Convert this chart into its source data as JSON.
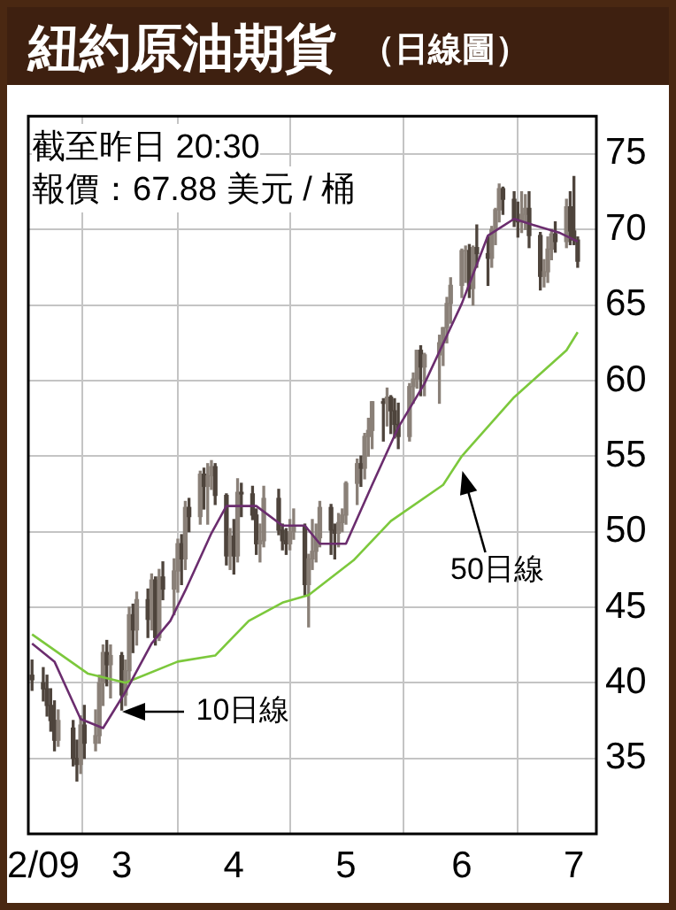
{
  "chart_data": {
    "type": "candlestick",
    "title": "紐約原油期貨",
    "subtitle": "（日線圖）",
    "annotations": [
      "截至昨日 20:30",
      "報價：67.88 美元 / 桶",
      {
        "text": "10日線",
        "x": "--03-02",
        "y": 38.1
      },
      {
        "text": "50日線",
        "x": "--06-01",
        "y": 54
      }
    ],
    "colors": [
      "#4e443c",
      "#4e443c",
      "#4e443c",
      "#4e443c",
      "#4e443c",
      "#8a8078",
      "#4e443c",
      "#4e443c",
      "#8a8078",
      "#4e443c",
      "#8a8078",
      "#8a8078",
      "#8a8078",
      "#4e443c",
      "#8a8078",
      "#4e443c",
      "#8a8078",
      "#8a8078",
      "#4e443c",
      "#8a8078",
      "#4e443c",
      "#8a8078",
      "#4e443c",
      "#8a8078",
      "#4e443c",
      "#8a8078",
      "#8a8078",
      "#4e443c",
      "#8a8078",
      "#4e443c",
      "#8a8078",
      "#4e443c",
      "#8a8078",
      "#8a8078",
      "#4e443c",
      "#4e443c",
      "#8a8078",
      "#4e443c",
      "#8a8078",
      "#4e443c",
      "#4e443c",
      "#4e443c",
      "#8a8078",
      "#8a8078",
      "#4e443c",
      "#4e443c",
      "#4e443c",
      "#8a8078",
      "#8a8078",
      "#4e443c",
      "#8a8078",
      "#8a8078",
      "#8a8078",
      "#8a8078",
      "#4e443c",
      "#4e443c",
      "#8a8078",
      "#8a8078",
      "#8a8078",
      "#8a8078",
      "#4e443c",
      "#8a8078",
      "#8a8078",
      "#8a8078",
      "#4e443c",
      "#8a8078",
      "#4e443c",
      "#4e443c",
      "#4e443c",
      "#8a8078",
      "#8a8078",
      "#8a8078",
      "#4e443c",
      "#8a8078",
      "#8a8078",
      "#8a8078",
      "#8a8078",
      "#8a8078",
      "#8a8078",
      "#8a8078",
      "#4e443c",
      "#8a8078",
      "#4e443c",
      "#4e443c",
      "#8a8078",
      "#8a8078",
      "#8a8078",
      "#4e443c",
      "#4e443c",
      "#4e443c",
      "#8a8078",
      "#8a8078",
      "#4e443c",
      "#4e443c",
      "#8a8078",
      "#8a8078",
      "#8a8078",
      "#4e443c",
      "#8a8078",
      "#4e443c",
      "#4e443c",
      "#4e443c"
    ],
    "x": [
      "--02-06",
      "--02-09",
      "--02-10",
      "--02-11",
      "--02-12",
      "--02-13",
      "--02-17",
      "--02-18",
      "--02-19",
      "--02-20",
      "--02-23",
      "--02-24",
      "--02-25",
      "--02-26",
      "--02-27",
      "--03-02",
      "--03-03",
      "--03-04",
      "--03-05",
      "--03-06",
      "--03-09",
      "--03-10",
      "--03-11",
      "--03-12",
      "--03-13",
      "--03-16",
      "--03-17",
      "--03-18",
      "--03-19",
      "--03-20",
      "--03-23",
      "--03-24",
      "--03-25",
      "--03-26",
      "--03-27",
      "--03-30",
      "--03-31",
      "--04-01",
      "--04-02",
      "--04-03",
      "--04-06",
      "--04-07",
      "--04-08",
      "--04-09",
      "--04-13",
      "--04-14",
      "--04-15",
      "--04-16",
      "--04-17",
      "--04-20",
      "--04-21",
      "--04-22",
      "--04-23",
      "--04-24",
      "--04-27",
      "--04-28",
      "--04-29",
      "--04-30",
      "--05-01",
      "--05-04",
      "--05-05",
      "--05-06",
      "--05-07",
      "--05-08",
      "--05-11",
      "--05-12",
      "--05-13",
      "--05-14",
      "--05-15",
      "--05-18",
      "--05-19",
      "--05-20",
      "--05-21",
      "--05-22",
      "--05-26",
      "--05-27",
      "--05-28",
      "--05-29",
      "--06-01",
      "--06-02",
      "--06-03",
      "--06-04",
      "--06-05",
      "--06-08",
      "--06-09",
      "--06-10",
      "--06-11",
      "--06-12",
      "--06-15",
      "--06-16",
      "--06-17",
      "--06-18",
      "--06-19",
      "--06-22",
      "--06-23",
      "--06-24",
      "--06-25",
      "--06-26",
      "--06-29",
      "--06-30",
      "--07-01",
      "--07-02"
    ],
    "ohlc": [
      [
        40.5,
        41.5,
        39.5,
        40.2
      ],
      [
        40.0,
        41.0,
        38.8,
        39.6
      ],
      [
        39.6,
        40.5,
        37.8,
        38.5
      ],
      [
        38.5,
        39.6,
        36.8,
        37.5
      ],
      [
        37.5,
        38.8,
        35.5,
        36.2
      ],
      [
        36.2,
        38.2,
        35.8,
        37.5
      ],
      [
        37.0,
        37.5,
        34.5,
        35.0
      ],
      [
        35.0,
        36.2,
        33.5,
        34.6
      ],
      [
        34.6,
        37.8,
        34.0,
        37.2
      ],
      [
        37.2,
        38.5,
        35.0,
        36.0
      ],
      [
        36.0,
        38.2,
        35.5,
        36.5
      ],
      [
        36.5,
        40.5,
        36.0,
        40.0
      ],
      [
        40.0,
        42.5,
        38.5,
        42.0
      ],
      [
        42.0,
        42.8,
        39.8,
        41.2
      ],
      [
        41.2,
        42.5,
        39.0,
        41.8
      ],
      [
        41.8,
        42.0,
        38.2,
        39.2
      ],
      [
        39.2,
        41.5,
        38.5,
        40.8
      ],
      [
        40.8,
        45.0,
        40.0,
        44.5
      ],
      [
        44.5,
        45.2,
        42.0,
        43.5
      ],
      [
        43.5,
        46.0,
        42.5,
        45.5
      ],
      [
        45.5,
        46.2,
        43.0,
        44.2
      ],
      [
        44.2,
        47.2,
        43.5,
        46.8
      ],
      [
        46.8,
        47.0,
        42.5,
        43.0
      ],
      [
        43.0,
        47.5,
        42.8,
        47.0
      ],
      [
        47.0,
        48.0,
        45.5,
        46.2
      ],
      [
        46.2,
        48.2,
        44.5,
        47.4
      ],
      [
        47.4,
        49.5,
        46.0,
        49.2
      ],
      [
        49.2,
        49.8,
        46.5,
        48.2
      ],
      [
        48.2,
        52.0,
        47.5,
        51.6
      ],
      [
        51.6,
        52.2,
        50.0,
        51.0
      ],
      [
        51.0,
        54.0,
        50.5,
        53.8
      ],
      [
        53.8,
        54.2,
        51.5,
        53.0
      ],
      [
        53.0,
        54.5,
        50.5,
        53.7
      ],
      [
        53.7,
        54.7,
        52.8,
        54.3
      ],
      [
        54.3,
        54.5,
        51.8,
        52.4
      ],
      [
        52.4,
        52.5,
        47.8,
        48.4
      ],
      [
        48.4,
        50.2,
        47.5,
        49.7
      ],
      [
        49.7,
        50.8,
        47.2,
        48.4
      ],
      [
        48.4,
        53.5,
        48.0,
        52.6
      ],
      [
        52.6,
        53.2,
        51.0,
        52.5
      ],
      [
        52.5,
        53.0,
        50.8,
        51.1
      ],
      [
        51.1,
        51.5,
        48.5,
        49.2
      ],
      [
        49.2,
        50.5,
        48.0,
        49.4
      ],
      [
        49.4,
        53.0,
        49.0,
        52.2
      ],
      [
        52.2,
        52.8,
        49.8,
        50.1
      ],
      [
        50.1,
        50.5,
        48.8,
        49.4
      ],
      [
        49.4,
        50.2,
        48.5,
        49.2
      ],
      [
        49.2,
        50.8,
        48.8,
        50.0
      ],
      [
        50.0,
        51.5,
        49.5,
        50.3
      ],
      [
        50.3,
        50.5,
        45.8,
        46.5
      ],
      [
        46.5,
        48.5,
        43.7,
        48.2
      ],
      [
        48.2,
        50.8,
        47.5,
        48.7
      ],
      [
        48.7,
        50.5,
        48.0,
        49.6
      ],
      [
        49.6,
        52.0,
        49.0,
        51.6
      ],
      [
        51.6,
        51.8,
        48.5,
        50.1
      ],
      [
        50.1,
        50.5,
        48.2,
        49.9
      ],
      [
        49.9,
        51.2,
        49.0,
        50.6
      ],
      [
        50.6,
        51.5,
        50.0,
        51.1
      ],
      [
        51.1,
        53.3,
        50.5,
        53.2
      ],
      [
        53.2,
        54.8,
        51.8,
        54.5
      ],
      [
        54.5,
        55.0,
        53.0,
        54.2
      ],
      [
        54.2,
        56.5,
        53.5,
        56.3
      ],
      [
        56.3,
        57.5,
        55.0,
        56.7
      ],
      [
        56.7,
        58.6,
        55.5,
        58.6
      ],
      [
        58.6,
        58.8,
        56.0,
        58.5
      ],
      [
        58.5,
        59.5,
        57.0,
        58.9
      ],
      [
        58.9,
        59.0,
        56.5,
        58.0
      ],
      [
        58.0,
        58.8,
        56.2,
        57.1
      ],
      [
        57.1,
        58.5,
        55.5,
        56.3
      ],
      [
        56.3,
        59.8,
        56.0,
        59.6
      ],
      [
        59.6,
        60.5,
        58.5,
        60.1
      ],
      [
        60.1,
        62.0,
        59.5,
        62.0
      ],
      [
        62.0,
        62.3,
        59.0,
        60.9
      ],
      [
        60.9,
        61.8,
        59.0,
        61.7
      ],
      [
        61.7,
        63.0,
        58.5,
        62.5
      ],
      [
        62.5,
        63.5,
        61.0,
        63.5
      ],
      [
        63.5,
        65.5,
        62.5,
        65.1
      ],
      [
        65.1,
        66.8,
        63.8,
        66.3
      ],
      [
        66.3,
        68.7,
        65.5,
        68.6
      ],
      [
        68.6,
        68.9,
        66.5,
        68.6
      ],
      [
        68.6,
        69.0,
        65.5,
        66.1
      ],
      [
        66.1,
        68.9,
        65.0,
        68.8
      ],
      [
        68.8,
        70.3,
        67.5,
        68.4
      ],
      [
        68.4,
        69.5,
        66.3,
        68.1
      ],
      [
        68.1,
        70.2,
        67.5,
        70.0
      ],
      [
        70.0,
        71.4,
        69.0,
        71.3
      ],
      [
        71.3,
        73.0,
        70.5,
        72.7
      ],
      [
        72.7,
        72.8,
        71.0,
        72.0
      ],
      [
        72.0,
        72.5,
        70.2,
        70.6
      ],
      [
        70.6,
        71.8,
        69.5,
        70.5
      ],
      [
        70.5,
        72.5,
        69.8,
        71.0
      ],
      [
        71.0,
        72.3,
        70.0,
        71.4
      ],
      [
        71.4,
        72.5,
        68.8,
        69.6
      ],
      [
        69.6,
        69.8,
        66.0,
        66.9
      ],
      [
        66.9,
        68.0,
        66.2,
        67.2
      ],
      [
        67.2,
        69.5,
        66.5,
        68.7
      ],
      [
        68.7,
        70.0,
        68.0,
        69.7
      ],
      [
        69.7,
        70.5,
        68.5,
        69.2
      ],
      [
        69.2,
        72.0,
        68.8,
        71.5
      ],
      [
        71.5,
        72.5,
        69.0,
        69.9
      ],
      [
        69.9,
        73.5,
        69.0,
        69.3
      ],
      [
        69.3,
        69.5,
        67.5,
        67.9
      ]
    ],
    "series": [
      {
        "type": "line",
        "color": "#6b2d6e",
        "x": [
          "--02-06",
          "--02-12",
          "--02-19",
          "--02-25",
          "--03-03",
          "--03-10",
          "--03-15",
          "--03-19",
          "--03-26",
          "--03-30",
          "--04-07",
          "--04-14",
          "--04-20",
          "--04-24",
          "--05-01",
          "--05-08",
          "--05-15",
          "--05-22",
          "--06-01",
          "--06-08",
          "--06-15",
          "--06-20",
          "--06-27",
          "--07-02"
        ],
        "values": [
          42.6,
          41.4,
          37.6,
          37.0,
          39.4,
          42.6,
          44.1,
          46.1,
          49.9,
          51.7,
          51.7,
          50.4,
          50.4,
          49.2,
          49.2,
          53.1,
          56.9,
          59.8,
          65.1,
          69.6,
          70.7,
          70.3,
          69.8,
          69.2
        ]
      },
      {
        "type": "line",
        "color": "#7cc83c",
        "x": [
          "--02-06",
          "--02-21",
          "--03-03",
          "--03-17",
          "--03-27",
          "--04-05",
          "--04-14",
          "--04-21",
          "--05-03",
          "--05-13",
          "--05-27",
          "--06-01",
          "--06-15",
          "--06-29",
          "--07-02"
        ],
        "values": [
          43.2,
          40.6,
          40.0,
          41.4,
          41.8,
          44.1,
          45.3,
          45.8,
          48.1,
          50.7,
          53.1,
          55.0,
          58.9,
          62.0,
          63.2
        ]
      }
    ],
    "xlim": [
      "--02-05",
      "--07-07"
    ],
    "xticks": [
      {
        "value": "--02-09",
        "label": "2/09"
      },
      {
        "value": "--03-02",
        "label": "3"
      },
      {
        "value": "--04-01",
        "label": "4"
      },
      {
        "value": "--05-01",
        "label": "5"
      },
      {
        "value": "--06-01",
        "label": "6"
      },
      {
        "value": "--07-01",
        "label": "7"
      }
    ],
    "ylim": [
      30,
      77.5
    ],
    "yticks": [
      35,
      40,
      45,
      50,
      55,
      60,
      65,
      70,
      75
    ],
    "grid": true,
    "legend": false,
    "marker": "none",
    "line_style": "solid"
  }
}
